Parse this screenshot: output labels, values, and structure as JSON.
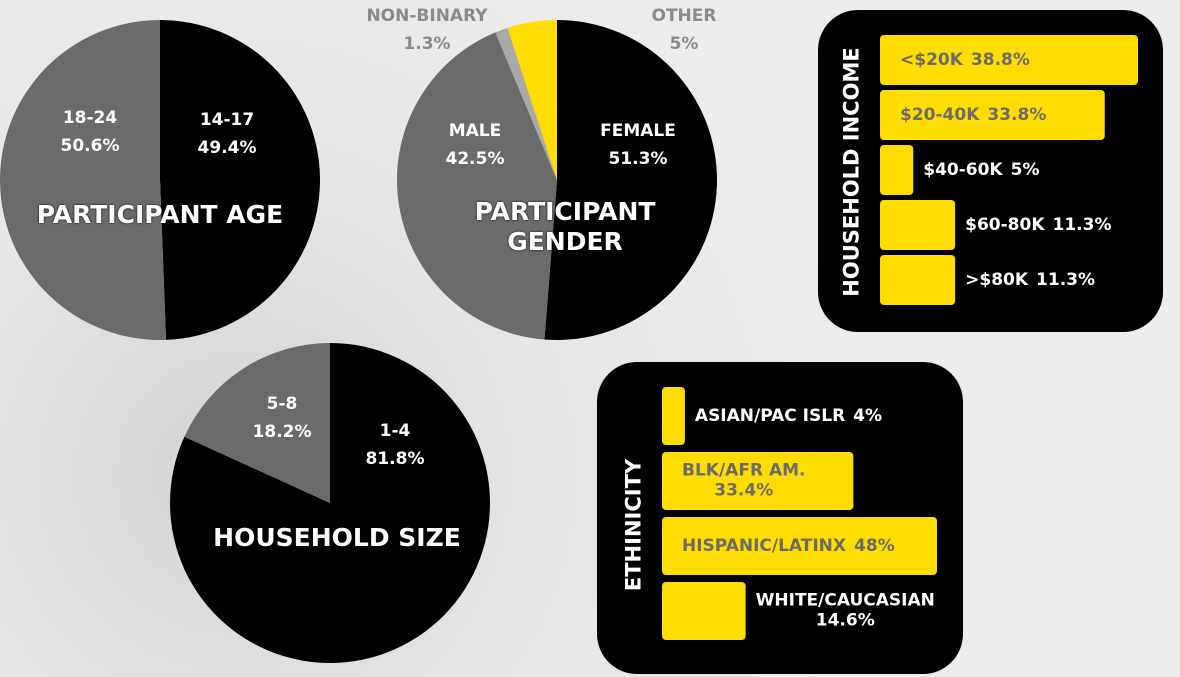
{
  "chart_data": [
    {
      "type": "pie",
      "title": "PARTICIPANT AGE",
      "categories": [
        "14-17",
        "18-24"
      ],
      "values": [
        49.4,
        50.6
      ],
      "value_labels": [
        "49.4%",
        "50.6%"
      ],
      "colors": [
        "#000000",
        "#6b6b6b"
      ]
    },
    {
      "type": "pie",
      "title": "PARTICIPANT GENDER",
      "categories": [
        "FEMALE",
        "MALE",
        "NON-BINARY",
        "OTHER"
      ],
      "values": [
        51.3,
        42.5,
        1.3,
        5
      ],
      "value_labels": [
        "51.3%",
        "42.5%",
        "1.3%",
        "5%"
      ],
      "colors": [
        "#000000",
        "#6b6b6b",
        "#a9a9a9",
        "#ffdd00"
      ]
    },
    {
      "type": "pie",
      "title": "HOUSEHOLD SIZE",
      "categories": [
        "1-4",
        "5-8"
      ],
      "values": [
        81.8,
        18.2
      ],
      "value_labels": [
        "81.8%",
        "18.2%"
      ],
      "colors": [
        "#000000",
        "#6b6b6b"
      ]
    },
    {
      "type": "hbar",
      "title": "HOUSEHOLD INCOME",
      "categories": [
        "<$20K",
        "$20-40K",
        "$40-60K",
        "$60-80K",
        ">$80K"
      ],
      "values": [
        38.8,
        33.8,
        5,
        11.3,
        11.3
      ],
      "value_labels": [
        "38.8%",
        "33.8%",
        "5%",
        "11.3%",
        "11.3%"
      ],
      "color": "#ffdd00"
    },
    {
      "type": "hbar",
      "title": "ETHINICITY",
      "categories": [
        "ASIAN/PAC ISLR",
        "BLK/AFR AM.",
        "HISPANIC/LATINX",
        "WHITE/CAUCASIAN"
      ],
      "values": [
        4,
        33.4,
        48,
        14.6
      ],
      "value_labels": [
        "4%",
        "33.4%",
        "48%",
        "14.6%"
      ],
      "color": "#ffdd00"
    }
  ]
}
